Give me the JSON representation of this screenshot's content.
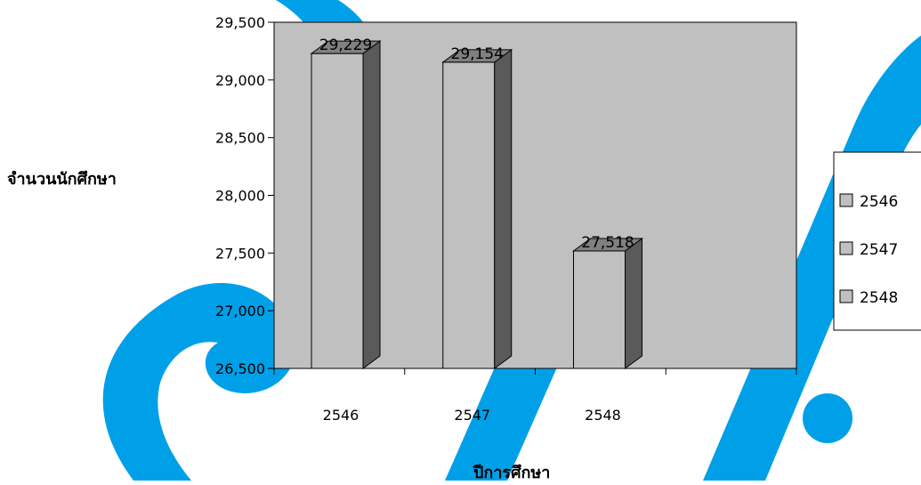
{
  "colors": {
    "plot_background": "#c0c0c0",
    "bar_front": "#c0c0c0",
    "bar_side": "#5a5a5a",
    "bar_top": "#808080",
    "watermark": "#00a0e9"
  },
  "chart_data": {
    "type": "bar",
    "title": "",
    "xlabel": "ปีการศึกษา",
    "ylabel": "จำนวนนักศึกษา",
    "categories": [
      "2546",
      "2547",
      "2548"
    ],
    "values": [
      29229,
      29154,
      27518
    ],
    "data_labels": [
      "29,229",
      "29,154",
      "27,518"
    ],
    "ylim": [
      26500,
      29500
    ],
    "yticks": [
      26500,
      27000,
      27500,
      28000,
      28500,
      29000,
      29500
    ],
    "ytick_labels": [
      "26,500",
      "27,000",
      "27,500",
      "28,000",
      "28,500",
      "29,000",
      "29,500"
    ],
    "grid": false,
    "legend": {
      "placement": "right",
      "entries": [
        "2546",
        "2547",
        "2548"
      ]
    }
  }
}
